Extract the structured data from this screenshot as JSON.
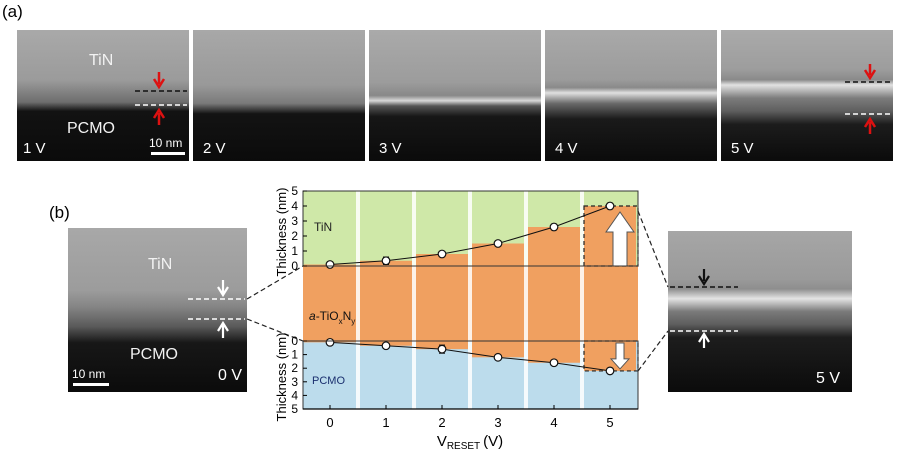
{
  "panel_a": {
    "label": "(a)",
    "images": [
      {
        "voltage": "1 V",
        "tin": "TiN",
        "pcmo": "PCMO",
        "scale": "10 nm"
      },
      {
        "voltage": "2 V"
      },
      {
        "voltage": "3 V"
      },
      {
        "voltage": "4 V"
      },
      {
        "voltage": "5 V"
      }
    ]
  },
  "panel_b": {
    "label": "(b)",
    "left_image": {
      "tin": "TiN",
      "pcmo": "PCMO",
      "scale": "10 nm",
      "voltage": "0 V"
    },
    "right_image": {
      "voltage": "5 V"
    }
  },
  "chart_data": {
    "type": "scatter",
    "x": [
      0,
      1,
      2,
      3,
      4,
      5
    ],
    "xlabel": "V",
    "xlabel_sub": "RESET",
    "xlabel_unit": "(V)",
    "top_axis": {
      "ylabel": "Thickness (nm)",
      "ylim": [
        0,
        5
      ],
      "ticks": [
        "0",
        "1",
        "2",
        "3",
        "4",
        "5"
      ]
    },
    "bottom_axis": {
      "ylabel": "Thickness (nm)",
      "ylim": [
        0,
        5
      ],
      "ticks": [
        "0",
        "1",
        "2",
        "3",
        "4",
        "5"
      ]
    },
    "series": [
      {
        "values": [
          0.1,
          0.35,
          0.8,
          1.5,
          2.6,
          4.0
        ],
        "errors": [
          0.1,
          0.25,
          0.15,
          0.15,
          0.2,
          0.2
        ]
      },
      {
        "values": [
          0.1,
          0.35,
          0.6,
          1.2,
          1.6,
          2.2
        ],
        "errors": [
          0.1,
          0.15,
          0.3,
          0.2,
          0.2,
          0.2
        ]
      }
    ],
    "regions": {
      "top": "TiN",
      "middle_prefix": "a",
      "middle": "-TiO",
      "middle_sub1": "x",
      "middle_mid": "N",
      "middle_sub2": "y",
      "bottom": "PCMO"
    },
    "colors": {
      "tin": "#cfe8a8",
      "oxide": "#f0a060",
      "pcmo": "#bcdcec"
    }
  }
}
